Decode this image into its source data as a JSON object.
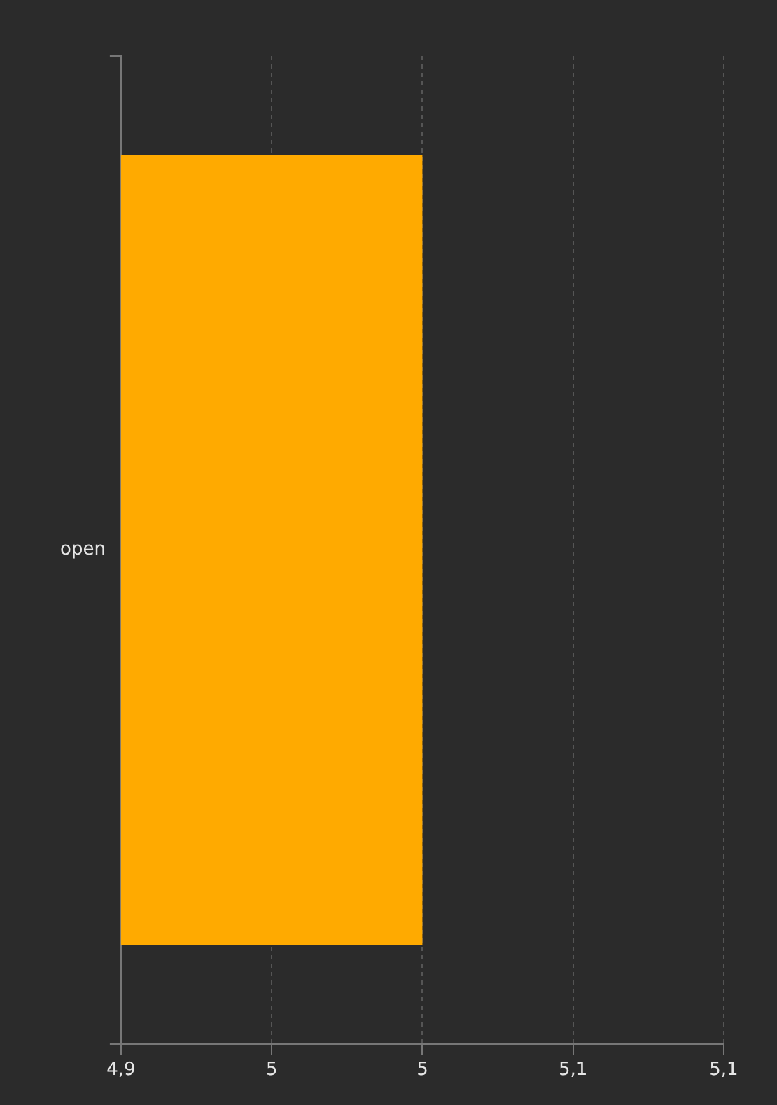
{
  "chart_data": {
    "type": "bar",
    "orientation": "horizontal",
    "categories": [
      "open"
    ],
    "series": [
      {
        "color": "#ffaa00",
        "values": [
          5
        ]
      }
    ],
    "xlim": [
      4.9,
      5.1
    ],
    "xticks": [
      {
        "value": 4.9,
        "label": "4,9"
      },
      {
        "value": 4.95,
        "label": "5"
      },
      {
        "value": 5,
        "label": "5"
      },
      {
        "value": 5.05,
        "label": "5,1"
      },
      {
        "value": 5.1,
        "label": "5,1"
      }
    ],
    "grid": "x",
    "legend": false
  }
}
